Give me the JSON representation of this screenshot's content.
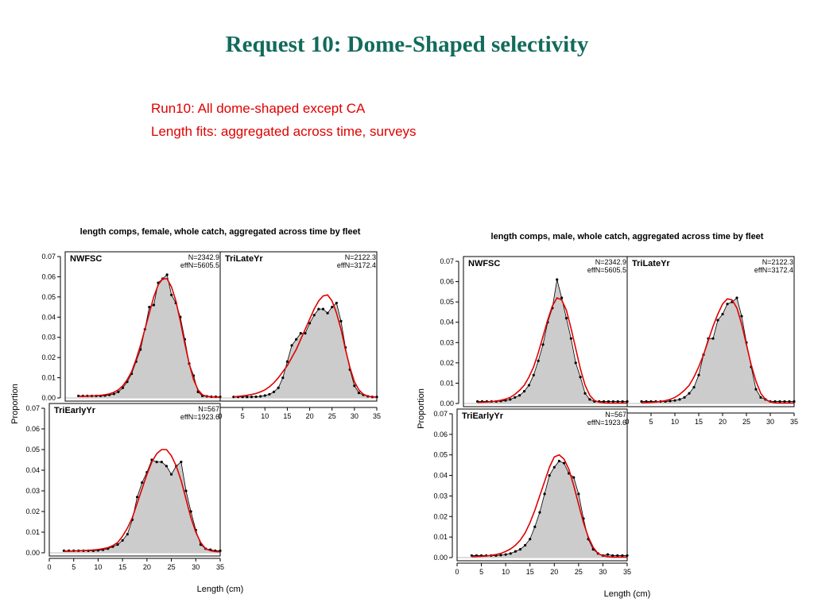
{
  "slide": {
    "title": "Request 10: Dome-Shaped selectivity",
    "subtitle_lines": [
      "Run10: All dome-shaped except CA",
      "Length fits: aggregated across time, surveys"
    ]
  },
  "colors": {
    "title": "#126b5c",
    "subtitle": "#e00000",
    "observed_fill": "#cccccc",
    "observed_line": "#000000",
    "expected_line": "#e00000"
  },
  "chart_data": [
    {
      "type": "area",
      "title": "length comps, female, whole catch, aggregated across time by fleet",
      "xlabel": "Length (cm)",
      "ylabel": "Proportion",
      "xlim": [
        0,
        35
      ],
      "ylim": [
        0,
        0.07
      ],
      "xticks": [
        0,
        5,
        10,
        15,
        20,
        25,
        30,
        35
      ],
      "yticks": [
        "0.00",
        "0.01",
        "0.02",
        "0.03",
        "0.04",
        "0.05",
        "0.06",
        "0.07"
      ],
      "x": [
        3,
        4,
        5,
        6,
        7,
        8,
        9,
        10,
        11,
        12,
        13,
        14,
        15,
        16,
        17,
        18,
        19,
        20,
        21,
        22,
        23,
        24,
        25,
        26,
        27,
        28,
        29,
        30,
        31,
        32,
        33,
        34,
        35
      ],
      "panels": [
        {
          "name": "NWFSC",
          "n_label": "N=2342.9",
          "effn_label": "effN=5605.5",
          "observed": [
            0.001,
            0.001,
            0.001,
            0.001,
            0.001,
            0.001,
            0.0012,
            0.0015,
            0.002,
            0.003,
            0.005,
            0.008,
            0.012,
            0.018,
            0.024,
            0.034,
            0.045,
            0.046,
            0.057,
            0.059,
            0.061,
            0.051,
            0.047,
            0.04,
            0.029,
            0.017,
            0.011,
            0.003,
            0.001,
            0.0008,
            0.0006,
            0.0006,
            0.0005
          ],
          "expected": [
            0.0008,
            0.0008,
            0.0009,
            0.001,
            0.0011,
            0.0013,
            0.0016,
            0.002,
            0.0028,
            0.004,
            0.006,
            0.009,
            0.013,
            0.019,
            0.026,
            0.034,
            0.042,
            0.05,
            0.056,
            0.059,
            0.059,
            0.055,
            0.048,
            0.038,
            0.027,
            0.017,
            0.009,
            0.004,
            0.0015,
            0.0008,
            0.0005,
            0.0004,
            0.0004
          ]
        },
        {
          "name": "TriLateYr",
          "n_label": "N=2122.3",
          "effn_label": "effN=3172.4",
          "observed": [
            0.0005,
            0.0005,
            0.0005,
            0.0005,
            0.0005,
            0.0006,
            0.0008,
            0.0012,
            0.0018,
            0.003,
            0.005,
            0.01,
            0.018,
            0.026,
            0.029,
            0.032,
            0.032,
            0.037,
            0.041,
            0.044,
            0.044,
            0.042,
            0.045,
            0.047,
            0.038,
            0.025,
            0.014,
            0.006,
            0.0025,
            0.0015,
            0.0008,
            0.0005,
            0.0005
          ],
          "expected": [
            0.0005,
            0.0007,
            0.001,
            0.0013,
            0.0017,
            0.0022,
            0.003,
            0.004,
            0.0055,
            0.0075,
            0.01,
            0.013,
            0.016,
            0.02,
            0.024,
            0.029,
            0.034,
            0.039,
            0.044,
            0.048,
            0.0505,
            0.051,
            0.048,
            0.042,
            0.034,
            0.024,
            0.015,
            0.008,
            0.004,
            0.0018,
            0.0009,
            0.0005,
            0.0004
          ]
        },
        {
          "name": "TriEarlyYr",
          "n_label": "N=567",
          "effn_label": "effN=1923.6",
          "observed": [
            0.001,
            0.001,
            0.001,
            0.001,
            0.001,
            0.001,
            0.001,
            0.0012,
            0.0015,
            0.002,
            0.003,
            0.004,
            0.006,
            0.009,
            0.016,
            0.027,
            0.034,
            0.039,
            0.045,
            0.044,
            0.044,
            0.042,
            0.038,
            0.042,
            0.044,
            0.03,
            0.02,
            0.011,
            0.004,
            0.002,
            0.0015,
            0.001,
            0.001
          ],
          "expected": [
            0.0008,
            0.0008,
            0.0009,
            0.001,
            0.0011,
            0.0012,
            0.0014,
            0.0016,
            0.002,
            0.0025,
            0.0035,
            0.005,
            0.008,
            0.012,
            0.017,
            0.024,
            0.031,
            0.038,
            0.044,
            0.048,
            0.05,
            0.05,
            0.047,
            0.042,
            0.035,
            0.026,
            0.017,
            0.01,
            0.005,
            0.002,
            0.001,
            0.0006,
            0.0005
          ]
        }
      ]
    },
    {
      "type": "area",
      "title": "length comps, male, whole catch, aggregated across time by fleet",
      "xlabel": "Length (cm)",
      "ylabel": "Proportion",
      "xlim": [
        0,
        35
      ],
      "ylim": [
        0,
        0.07
      ],
      "xticks": [
        0,
        5,
        10,
        15,
        20,
        25,
        30,
        35
      ],
      "yticks": [
        "0.00",
        "0.01",
        "0.02",
        "0.03",
        "0.04",
        "0.05",
        "0.06",
        "0.07"
      ],
      "x": [
        3,
        4,
        5,
        6,
        7,
        8,
        9,
        10,
        11,
        12,
        13,
        14,
        15,
        16,
        17,
        18,
        19,
        20,
        21,
        22,
        23,
        24,
        25,
        26,
        27,
        28,
        29,
        30,
        31,
        32,
        33,
        34,
        35
      ],
      "panels": [
        {
          "name": "NWFSC",
          "n_label": "N=2342.9",
          "effn_label": "effN=5605.5",
          "observed": [
            0.001,
            0.001,
            0.001,
            0.001,
            0.001,
            0.0012,
            0.0015,
            0.002,
            0.003,
            0.004,
            0.006,
            0.009,
            0.014,
            0.021,
            0.029,
            0.04,
            0.047,
            0.061,
            0.052,
            0.042,
            0.032,
            0.02,
            0.013,
            0.005,
            0.002,
            0.001,
            0.001,
            0.001,
            0.001,
            0.001,
            0.001,
            0.001,
            0.001
          ],
          "expected": [
            0.0005,
            0.0006,
            0.0007,
            0.0009,
            0.0012,
            0.0016,
            0.0022,
            0.003,
            0.0045,
            0.0065,
            0.009,
            0.013,
            0.018,
            0.025,
            0.033,
            0.041,
            0.048,
            0.052,
            0.051,
            0.046,
            0.037,
            0.027,
            0.017,
            0.009,
            0.004,
            0.0015,
            0.0006,
            0.0003,
            0.0002,
            0.0002,
            0.0002,
            0.0002,
            0.0002
          ]
        },
        {
          "name": "TriLateYr",
          "n_label": "N=2122.3",
          "effn_label": "effN=3172.4",
          "observed": [
            0.001,
            0.001,
            0.001,
            0.001,
            0.001,
            0.001,
            0.0012,
            0.0015,
            0.002,
            0.003,
            0.005,
            0.008,
            0.014,
            0.024,
            0.032,
            0.032,
            0.041,
            0.044,
            0.049,
            0.05,
            0.052,
            0.043,
            0.03,
            0.018,
            0.007,
            0.003,
            0.002,
            0.001,
            0.001,
            0.001,
            0.001,
            0.001,
            0.001
          ],
          "expected": [
            0.0003,
            0.0004,
            0.0005,
            0.0007,
            0.001,
            0.0014,
            0.002,
            0.003,
            0.0045,
            0.0065,
            0.009,
            0.013,
            0.018,
            0.024,
            0.031,
            0.038,
            0.044,
            0.049,
            0.0515,
            0.051,
            0.047,
            0.039,
            0.029,
            0.019,
            0.011,
            0.005,
            0.002,
            0.0008,
            0.0003,
            0.0002,
            0.0002,
            0.0002,
            0.0002
          ]
        },
        {
          "name": "TriEarlyYr",
          "n_label": "N=567",
          "effn_label": "effN=1923.6",
          "observed": [
            0.001,
            0.001,
            0.001,
            0.001,
            0.001,
            0.001,
            0.0012,
            0.0015,
            0.002,
            0.003,
            0.004,
            0.006,
            0.009,
            0.015,
            0.022,
            0.031,
            0.04,
            0.044,
            0.047,
            0.046,
            0.041,
            0.039,
            0.031,
            0.019,
            0.009,
            0.004,
            0.002,
            0.001,
            0.0015,
            0.001,
            0.001,
            0.001,
            0.001
          ],
          "expected": [
            0.0004,
            0.0005,
            0.0006,
            0.0008,
            0.0011,
            0.0015,
            0.002,
            0.003,
            0.0042,
            0.006,
            0.0085,
            0.012,
            0.017,
            0.023,
            0.03,
            0.037,
            0.044,
            0.049,
            0.05,
            0.048,
            0.043,
            0.035,
            0.026,
            0.017,
            0.01,
            0.005,
            0.002,
            0.0009,
            0.0004,
            0.0002,
            0.0002,
            0.0002,
            0.0002
          ]
        }
      ]
    }
  ]
}
